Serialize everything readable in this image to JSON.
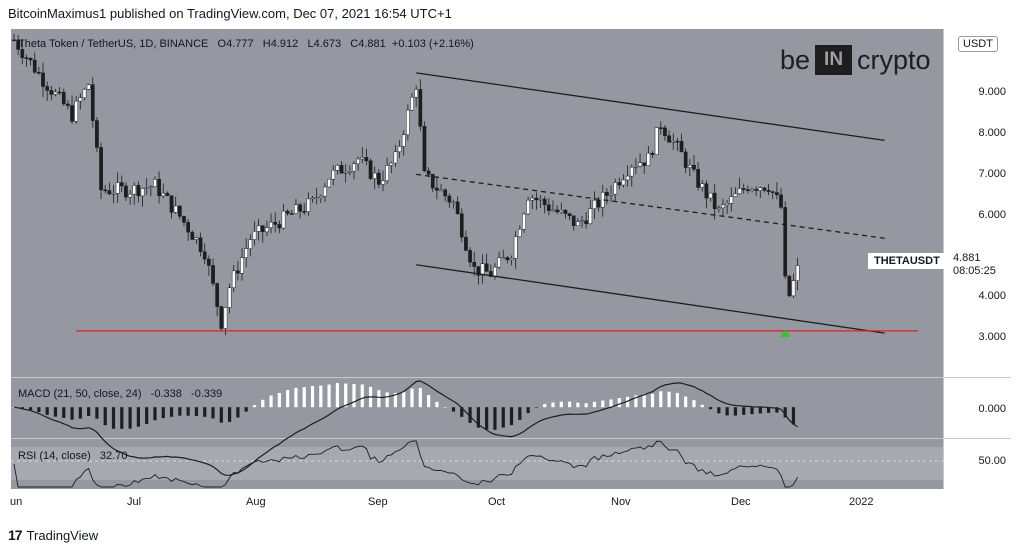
{
  "header": {
    "published": "BitcoinMaximus1 published on TradingView.com, Dec 07, 2021 16:54 UTC+1"
  },
  "symbol": {
    "name": "Theta Token / TetherUS, 1D, BINANCE",
    "o_label": "O",
    "o_value": "4.777",
    "h_label": "H",
    "h_value": "4.912",
    "l_label": "L",
    "l_value": "4.673",
    "c_label": "C",
    "c_value": "4.881",
    "change": "+0.103 (+2.16%)"
  },
  "logo": {
    "left": "be",
    "box": "IN",
    "right": "crypto"
  },
  "currency_badge": "USDT",
  "ticker": "THETAUSDT",
  "current_price": "4.881",
  "countdown": "08:05:25",
  "price_axis": [
    "9.000",
    "8.000",
    "7.000",
    "6.000",
    "4.000",
    "3.000"
  ],
  "macd": {
    "label": "MACD (21, 50, close, 24)",
    "v1": "-0.338",
    "v2": "-0.339",
    "axis": "0.000"
  },
  "rsi": {
    "label": "RSI (14, close)",
    "value": "32.70",
    "axis": "50.00"
  },
  "x_axis": [
    "un",
    "Jul",
    "Aug",
    "Sep",
    "Oct",
    "Nov",
    "Dec",
    "2022"
  ],
  "footer": {
    "brand": "TradingView"
  },
  "colors": {
    "background": "#9598a1",
    "candle_up": "#ffffff",
    "candle_down": "#1e1e1e",
    "support": "#d92323",
    "marker": "#26c926"
  },
  "chart_data": {
    "type": "candlestick",
    "title": "Theta Token / TetherUS, 1D, BINANCE",
    "ylim": [
      2.5,
      10.3
    ],
    "x": [
      "2021-06-01",
      "2021-07-01",
      "2021-08-01",
      "2021-09-01",
      "2021-10-01",
      "2021-11-01",
      "2021-12-01",
      "2022-01-01"
    ],
    "price_path": [
      [
        "2021-06-01",
        10.1
      ],
      [
        "2021-06-08",
        9.2
      ],
      [
        "2021-06-15",
        8.4
      ],
      [
        "2021-06-19",
        9.1
      ],
      [
        "2021-06-22",
        6.7
      ],
      [
        "2021-06-29",
        6.7
      ],
      [
        "2021-07-05",
        6.8
      ],
      [
        "2021-07-11",
        6.1
      ],
      [
        "2021-07-17",
        5.3
      ],
      [
        "2021-07-21",
        3.7
      ],
      [
        "2021-07-23",
        4.5
      ],
      [
        "2021-07-28",
        5.6
      ],
      [
        "2021-08-06",
        6.1
      ],
      [
        "2021-08-12",
        6.4
      ],
      [
        "2021-08-16",
        7.0
      ],
      [
        "2021-08-23",
        7.4
      ],
      [
        "2021-08-28",
        6.9
      ],
      [
        "2021-09-01",
        7.4
      ],
      [
        "2021-09-06",
        9.1
      ],
      [
        "2021-09-08",
        7.0
      ],
      [
        "2021-09-15",
        6.4
      ],
      [
        "2021-09-20",
        4.9
      ],
      [
        "2021-09-24",
        4.8
      ],
      [
        "2021-09-29",
        5.3
      ],
      [
        "2021-10-03",
        6.6
      ],
      [
        "2021-10-10",
        6.2
      ],
      [
        "2021-10-15",
        5.9
      ],
      [
        "2021-10-22",
        6.6
      ],
      [
        "2021-10-28",
        7.3
      ],
      [
        "2021-11-01",
        7.4
      ],
      [
        "2021-11-04",
        8.2
      ],
      [
        "2021-11-09",
        7.5
      ],
      [
        "2021-11-12",
        7.0
      ],
      [
        "2021-11-18",
        6.2
      ],
      [
        "2021-11-25",
        6.8
      ],
      [
        "2021-11-30",
        6.8
      ],
      [
        "2021-12-03",
        6.3
      ],
      [
        "2021-12-04",
        4.6
      ],
      [
        "2021-12-05",
        4.3
      ],
      [
        "2021-12-07",
        4.881
      ]
    ],
    "annotations": {
      "channel_upper": [
        [
          "2021-09-06",
          9.35
        ],
        [
          "2021-12-28",
          7.82
        ]
      ],
      "channel_mid": [
        [
          "2021-09-06",
          7.05
        ],
        [
          "2021-12-28",
          5.6
        ]
      ],
      "channel_lower": [
        [
          "2021-09-06",
          5.0
        ],
        [
          "2021-12-28",
          3.45
        ]
      ],
      "support": {
        "y": 3.5,
        "from": "2021-06-16",
        "to": "2022-01-05"
      },
      "marker": "2021-12-04"
    },
    "macd": {
      "ylim": [
        -0.55,
        0.5
      ],
      "labels": [
        "-0.338",
        "-0.339"
      ]
    },
    "rsi": {
      "ylim": [
        20,
        80
      ],
      "value": 32.7
    }
  }
}
